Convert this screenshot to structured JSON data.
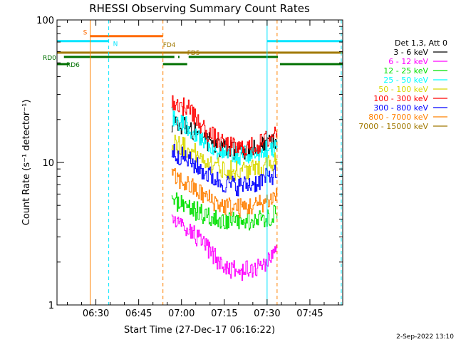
{
  "chart_data": {
    "type": "line",
    "title": "RHESSI Observing Summary Count Rates",
    "xlabel": "Start Time (27-Dec-17 06:16:22)",
    "ylabel": "Count Rate (s⁻¹ detector⁻¹)",
    "x_unit": "minutes after 06:00",
    "xlim": [
      16.37,
      116.5
    ],
    "ylim": [
      1,
      100
    ],
    "y_scale": "log",
    "x_ticks": [
      {
        "x": 30,
        "label": "06:30"
      },
      {
        "x": 45,
        "label": "06:45"
      },
      {
        "x": 60,
        "label": "07:00"
      },
      {
        "x": 75,
        "label": "07:15"
      },
      {
        "x": 90,
        "label": "07:30"
      },
      {
        "x": 105,
        "label": "07:45"
      }
    ],
    "y_ticks": [
      {
        "y": 1,
        "label": "1"
      },
      {
        "y": 10,
        "label": "10"
      },
      {
        "y": 100,
        "label": "100"
      }
    ],
    "data_span": [
      56.5,
      93.5
    ],
    "legend_header": "Det 1,3, Att 0",
    "legend_placement": "right",
    "series": [
      {
        "name": "3 - 6 keV",
        "color": "#000000",
        "values": [
          {
            "x": 56.5,
            "y": 19
          },
          {
            "x": 62,
            "y": 18
          },
          {
            "x": 68,
            "y": 14.5
          },
          {
            "x": 74,
            "y": 12.5
          },
          {
            "x": 80,
            "y": 12
          },
          {
            "x": 86,
            "y": 12.5
          },
          {
            "x": 91,
            "y": 13.5
          },
          {
            "x": 93.5,
            "y": 14
          }
        ]
      },
      {
        "name": "6 - 12 keV",
        "color": "#ff00ff",
        "values": [
          {
            "x": 56.5,
            "y": 4.0
          },
          {
            "x": 62,
            "y": 3.5
          },
          {
            "x": 68,
            "y": 2.6
          },
          {
            "x": 74,
            "y": 1.9
          },
          {
            "x": 80,
            "y": 1.7
          },
          {
            "x": 86,
            "y": 1.8
          },
          {
            "x": 91,
            "y": 2.1
          },
          {
            "x": 93.5,
            "y": 2.5
          }
        ]
      },
      {
        "name": "12 - 25 keV",
        "color": "#00e000",
        "values": [
          {
            "x": 56.5,
            "y": 5.5
          },
          {
            "x": 62,
            "y": 5.0
          },
          {
            "x": 68,
            "y": 4.2
          },
          {
            "x": 74,
            "y": 3.9
          },
          {
            "x": 80,
            "y": 3.8
          },
          {
            "x": 86,
            "y": 3.9
          },
          {
            "x": 91,
            "y": 4.2
          },
          {
            "x": 93.5,
            "y": 4.5
          }
        ]
      },
      {
        "name": "25 - 50 keV",
        "color": "#00ffff",
        "values": [
          {
            "x": 56.5,
            "y": 21
          },
          {
            "x": 62,
            "y": 18
          },
          {
            "x": 68,
            "y": 14
          },
          {
            "x": 74,
            "y": 11.5
          },
          {
            "x": 80,
            "y": 11
          },
          {
            "x": 86,
            "y": 11.5
          },
          {
            "x": 91,
            "y": 12.5
          },
          {
            "x": 93.5,
            "y": 13
          }
        ]
      },
      {
        "name": "50 - 100 keV",
        "color": "#d8d800",
        "values": [
          {
            "x": 56.5,
            "y": 14
          },
          {
            "x": 62,
            "y": 12.5
          },
          {
            "x": 68,
            "y": 10.5
          },
          {
            "x": 74,
            "y": 9
          },
          {
            "x": 80,
            "y": 8.7
          },
          {
            "x": 86,
            "y": 9
          },
          {
            "x": 91,
            "y": 10
          },
          {
            "x": 93.5,
            "y": 10.5
          }
        ]
      },
      {
        "name": "100 - 300 keV",
        "color": "#ff0000",
        "values": [
          {
            "x": 56.5,
            "y": 27
          },
          {
            "x": 62,
            "y": 24
          },
          {
            "x": 68,
            "y": 17
          },
          {
            "x": 74,
            "y": 13.5
          },
          {
            "x": 80,
            "y": 12.5
          },
          {
            "x": 86,
            "y": 13
          },
          {
            "x": 91,
            "y": 15
          },
          {
            "x": 93.5,
            "y": 17
          }
        ]
      },
      {
        "name": "300 - 800 keV",
        "color": "#0000ff",
        "values": [
          {
            "x": 56.5,
            "y": 12
          },
          {
            "x": 62,
            "y": 10.5
          },
          {
            "x": 68,
            "y": 8.5
          },
          {
            "x": 74,
            "y": 7.2
          },
          {
            "x": 80,
            "y": 6.8
          },
          {
            "x": 86,
            "y": 7.2
          },
          {
            "x": 91,
            "y": 8
          },
          {
            "x": 93.5,
            "y": 8.5
          }
        ]
      },
      {
        "name": "800 - 7000 keV",
        "color": "#ff8000",
        "values": [
          {
            "x": 56.5,
            "y": 8
          },
          {
            "x": 62,
            "y": 7
          },
          {
            "x": 68,
            "y": 5.8
          },
          {
            "x": 74,
            "y": 5
          },
          {
            "x": 80,
            "y": 4.8
          },
          {
            "x": 86,
            "y": 5
          },
          {
            "x": 91,
            "y": 5.5
          },
          {
            "x": 93.5,
            "y": 6
          }
        ]
      },
      {
        "name": "7000 - 15000 keV",
        "color": "#a07800",
        "values": []
      }
    ],
    "flags": [
      {
        "label": "S",
        "color": "#ff6a00",
        "y": 77,
        "segments": [
          [
            28,
            53.5
          ]
        ]
      },
      {
        "label": "N",
        "color": "#00e5ff",
        "y": 71,
        "segments": [
          [
            16.37,
            34.5
          ],
          [
            90,
            116.5
          ]
        ]
      },
      {
        "label": "FD4",
        "color": "#a07800",
        "y": 59,
        "segments": [
          [
            16.37,
            116.5
          ]
        ]
      },
      {
        "label": "FD5",
        "color": "#a07800",
        "y": 59,
        "segments": []
      },
      {
        "label": "RD0",
        "color": "#007000",
        "y": 55,
        "segments": [
          [
            18.8,
            57.5
          ],
          [
            58.8,
            59.3
          ],
          [
            62.5,
            93.8
          ]
        ]
      },
      {
        "label": "RD6",
        "color": "#007000",
        "y": 49,
        "segments": [
          [
            16.37,
            20.6
          ],
          [
            53.5,
            62
          ],
          [
            94.5,
            116.5
          ]
        ]
      }
    ],
    "vertical_markers": [
      {
        "x": 16.37,
        "color": "#00e5ff",
        "style": "solid"
      },
      {
        "x": 28,
        "color": "#ff8000",
        "style": "solid"
      },
      {
        "x": 34.5,
        "color": "#00e5ff",
        "style": "dashed"
      },
      {
        "x": 53.5,
        "color": "#ff8000",
        "style": "dashed"
      },
      {
        "x": 90,
        "color": "#00e5ff",
        "style": "solid"
      },
      {
        "x": 93.5,
        "color": "#ff8000",
        "style": "dashed"
      },
      {
        "x": 116,
        "color": "#00e5ff",
        "style": "dashed"
      }
    ]
  },
  "footer_date": "2-Sep-2022 13:10"
}
